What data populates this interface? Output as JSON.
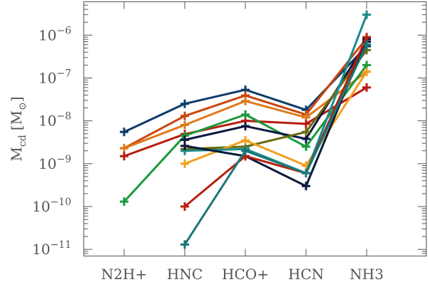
{
  "chart_data": {
    "type": "line",
    "categories": [
      "N2H+",
      "HNC",
      "HCO+",
      "HCN",
      "NH3"
    ],
    "ylabel": "M_cd [M_⊙]",
    "yscale": "log",
    "ylim": [
      7e-12,
      6e-06
    ],
    "yticks": [
      {
        "value": 1e-11,
        "label": "10",
        "exp": "−11"
      },
      {
        "value": 1e-10,
        "label": "10",
        "exp": "−10"
      },
      {
        "value": 1e-09,
        "label": "10",
        "exp": "−9"
      },
      {
        "value": 1e-08,
        "label": "10",
        "exp": "−8"
      },
      {
        "value": 1e-07,
        "label": "10",
        "exp": "−7"
      },
      {
        "value": 1e-06,
        "label": "10",
        "exp": "−6"
      }
    ],
    "marker": "plus",
    "grid": false,
    "series": [
      {
        "color": "#0e3d6b",
        "values": [
          5.5e-09,
          2.5e-08,
          5.3e-08,
          1.8e-08,
          5.5e-07
        ]
      },
      {
        "color": "#c8460f",
        "values": [
          2.3e-09,
          1.3e-08,
          3.9e-08,
          1.4e-08,
          8.5e-07
        ]
      },
      {
        "color": "#e07a1a",
        "values": [
          2.3e-09,
          8e-09,
          2.9e-08,
          1.2e-08,
          1.4e-07
        ]
      },
      {
        "color": "#b81c10",
        "values": [
          1.5e-09,
          4.9e-09,
          1e-08,
          8.5e-09,
          6e-08
        ]
      },
      {
        "color": "#1a9a3a",
        "values": [
          1.3e-10,
          4.5e-09,
          1.4e-08,
          2.5e-09,
          2e-07
        ]
      },
      {
        "color": "#0c1640",
        "values": [
          null,
          3.6e-09,
          7.5e-09,
          3.8e-09,
          7e-07
        ]
      },
      {
        "color": "#6b6a10",
        "values": [
          null,
          2.2e-09,
          2.5e-09,
          5.5e-09,
          4.5e-07
        ]
      },
      {
        "color": "#f0a020",
        "values": [
          null,
          1e-09,
          3.5e-09,
          9e-10,
          1.4e-07
        ]
      },
      {
        "color": "#1a8a8a",
        "values": [
          null,
          2e-09,
          2.2e-09,
          6e-10,
          3e-06
        ]
      },
      {
        "color": "#0a1a3a",
        "values": [
          null,
          2.6e-09,
          1.5e-09,
          3e-10,
          8e-07
        ]
      },
      {
        "color": "#b82010",
        "values": [
          null,
          1e-10,
          1.5e-09,
          6e-10,
          9e-07
        ]
      },
      {
        "color": "#1a7878",
        "values": [
          null,
          1.3e-11,
          2e-09,
          6e-10,
          6e-07
        ]
      }
    ]
  }
}
